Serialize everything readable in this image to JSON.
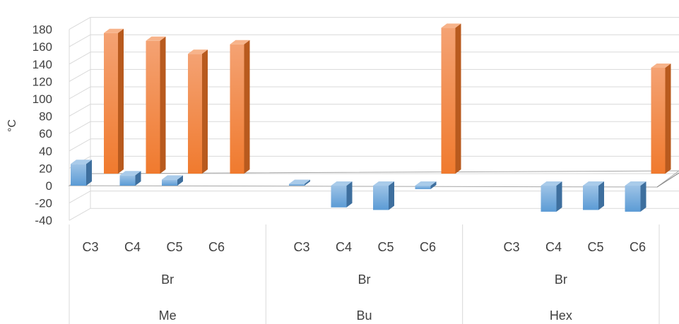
{
  "chart_data": {
    "type": "bar",
    "style": "3d-clustered-column",
    "ylabel": "°C",
    "ylim": [
      -40,
      180
    ],
    "yticks": [
      -40,
      -20,
      0,
      20,
      40,
      60,
      80,
      100,
      120,
      140,
      160,
      180
    ],
    "grid": true,
    "legend": "none",
    "categories": [
      "C3",
      "C4",
      "C5",
      "C6",
      "C3",
      "C4",
      "C5",
      "C6",
      "C3",
      "C4",
      "C5",
      "C6"
    ],
    "category_levels": {
      "level1": [
        "C3",
        "C4",
        "C5",
        "C6",
        "C3",
        "C4",
        "C5",
        "C6",
        "C3",
        "C4",
        "C5",
        "C6"
      ],
      "level2": [
        "Br",
        "Br",
        "Br"
      ],
      "level3": [
        "Me",
        "Bu",
        "Hex"
      ]
    },
    "series": [
      {
        "color": "#5B9BD5",
        "values": [
          25,
          12,
          7,
          null,
          2,
          -25,
          -28,
          -4,
          null,
          -30,
          -28,
          -30
        ]
      },
      {
        "color": "#ED7D31",
        "values": [
          162,
          153,
          138,
          149,
          null,
          null,
          null,
          168,
          null,
          null,
          null,
          122
        ]
      }
    ]
  }
}
